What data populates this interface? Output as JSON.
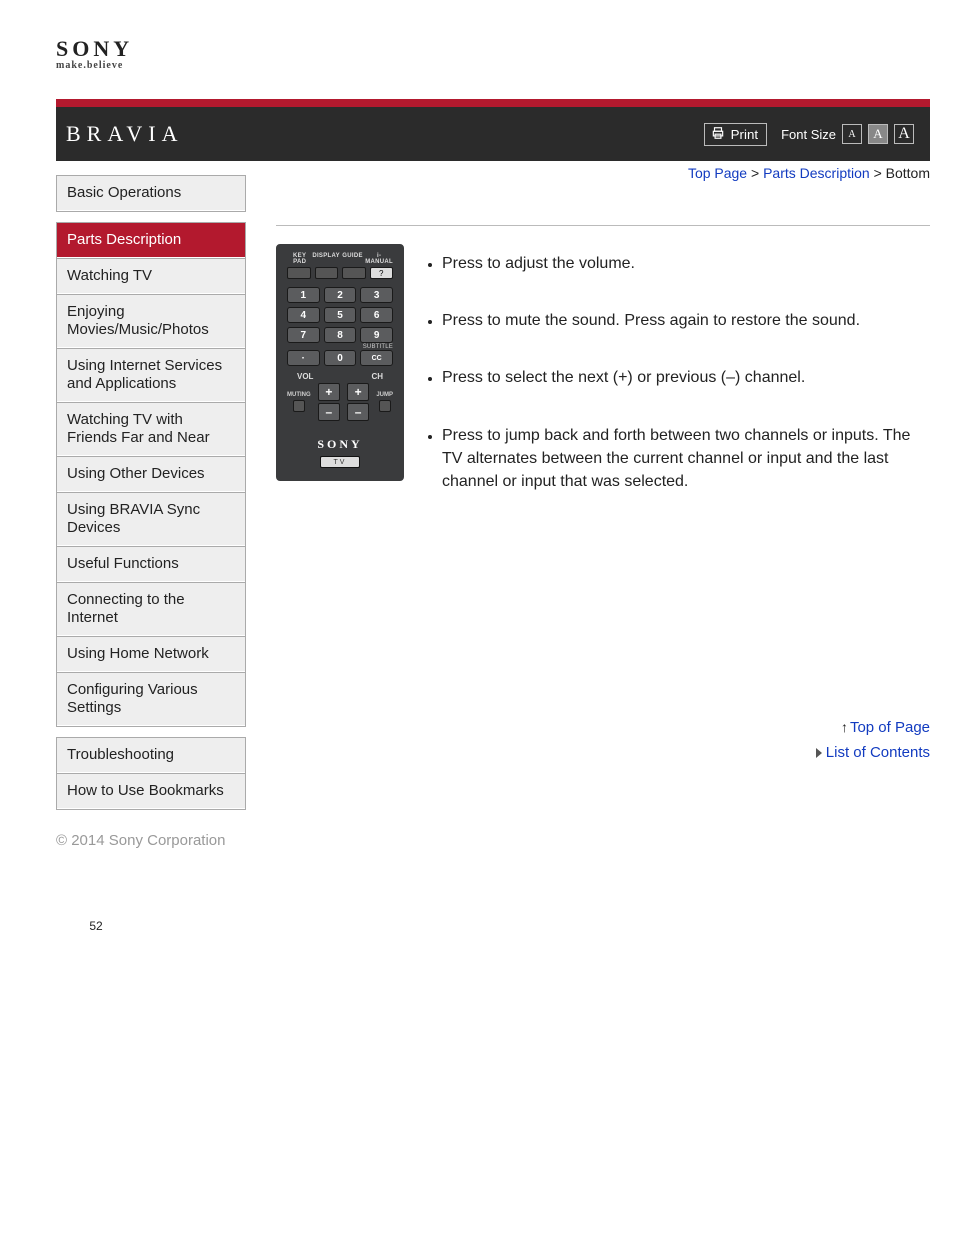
{
  "logo": {
    "brand": "SONY",
    "tagline": "make.believe"
  },
  "header": {
    "product": "BRAVIA",
    "print_label": "Print",
    "fontsize_label": "Font Size",
    "fs_small": "A",
    "fs_med": "A",
    "fs_large": "A"
  },
  "breadcrumb": {
    "top_page": "Top Page",
    "section": "Parts Description",
    "current": "Bottom",
    "sep": " > "
  },
  "sidebar": {
    "group1": [
      {
        "label": "Basic Operations"
      }
    ],
    "group2": [
      {
        "label": "Parts Description",
        "active": true
      },
      {
        "label": "Watching TV"
      },
      {
        "label": "Enjoying Movies/Music/Photos"
      },
      {
        "label": "Using Internet Services and Applications"
      },
      {
        "label": "Watching TV with Friends Far and Near"
      },
      {
        "label": "Using Other Devices"
      },
      {
        "label": "Using BRAVIA Sync Devices"
      },
      {
        "label": "Useful Functions"
      },
      {
        "label": "Connecting to the Internet"
      },
      {
        "label": "Using Home Network"
      },
      {
        "label": "Configuring Various Settings"
      }
    ],
    "group3": [
      {
        "label": "Troubleshooting"
      },
      {
        "label": "How to Use Bookmarks"
      }
    ]
  },
  "remote": {
    "top_labels": [
      "KEY PAD",
      "DISPLAY",
      "GUIDE",
      "i-MANUAL"
    ],
    "qmark": "?",
    "numpad": [
      "1",
      "2",
      "3",
      "4",
      "5",
      "6",
      "7",
      "8",
      "9",
      "·",
      "0"
    ],
    "subtitle": "SUBTITLE",
    "cc": "CC",
    "vol": "VOL",
    "ch": "CH",
    "muting": "MUTING",
    "jump": "JUMP",
    "plus": "+",
    "minus": "–",
    "sony": "SONY",
    "tv": "TV"
  },
  "descriptions": [
    "Press to adjust the volume.",
    "Press to mute the sound. Press again to restore the sound.",
    "Press to select the next (+) or previous (–) channel.",
    "Press to jump back and forth between two channels or inputs. The TV alternates between the current channel or input and the last channel or input that was selected."
  ],
  "footer": {
    "top_of_page": "Top of Page",
    "list_of_contents": "List of Contents",
    "copyright": "© 2014 Sony Corporation",
    "page_number": "52"
  }
}
